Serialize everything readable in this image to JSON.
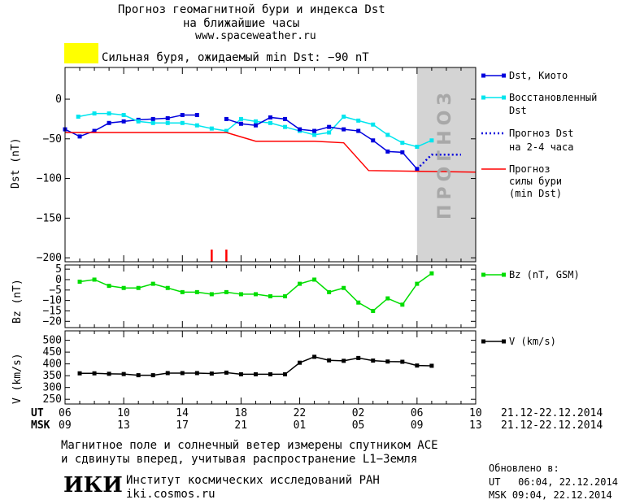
{
  "header": {
    "title_line1": "Прогноз геомагнитной бури и индекса Dst",
    "title_line2": "на ближайшие часы",
    "url": "www.spaceweather.ru",
    "storm_text": "Сильная буря, ожидаемый min Dst: −90 nT",
    "storm_color": "#ffff00"
  },
  "forecast_band_text": "ПРОГНОЗ",
  "colors": {
    "dst_kyoto": "#0000dd",
    "dst_restored": "#00e5ee",
    "dst_forecast": "#0000dd",
    "storm_forecast": "#ff0000",
    "bz": "#00dd00",
    "v": "#000000",
    "forecast_band": "#d4d4d4"
  },
  "legend": {
    "dst_kyoto": "Dst, Киото",
    "restored_1": "Восстановленный",
    "restored_2": "Dst",
    "forecast_1": "Прогноз Dst",
    "forecast_2": "на 2-4 часа",
    "storm_1": "Прогноз",
    "storm_2": "силы бури",
    "storm_3": "(min Dst)",
    "bz": "Bz (nT, GSM)",
    "v": "V (km/s)"
  },
  "time_axis": {
    "ut_label": "UT",
    "msk_label": "MSK",
    "ut_ticks": [
      "06",
      "10",
      "14",
      "18",
      "22",
      "02",
      "06",
      "10"
    ],
    "msk_ticks": [
      "09",
      "13",
      "17",
      "21",
      "01",
      "05",
      "09",
      "13"
    ],
    "date_range_ut": "21.12-22.12.2014",
    "date_range_msk": "21.12-22.12.2014"
  },
  "chart_data": [
    {
      "type": "line",
      "ylabel": "Dst (nT)",
      "ylim": [
        -205,
        40
      ],
      "yticks": [
        0,
        -50,
        -100,
        -150,
        -200
      ],
      "ytick_labels": [
        "0",
        "−50",
        "−100",
        "−150",
        "−200"
      ],
      "xlim": [
        6,
        34
      ],
      "forecast_region_x": [
        30,
        34
      ],
      "series": [
        {
          "name": "Dst, Киото",
          "x": [
            6,
            7,
            8,
            9,
            10,
            11,
            12,
            13,
            14,
            15
          ],
          "y": [
            -38,
            -47,
            -40,
            -30,
            -28,
            -26,
            -25,
            -24,
            -20,
            -20
          ]
        },
        {
          "name": "Восстановленный Dst",
          "x": [
            6.9,
            8,
            9,
            10,
            11,
            12,
            13,
            14,
            15,
            16,
            17,
            18,
            19,
            20,
            21,
            22,
            23,
            24,
            25,
            26,
            27,
            28,
            29,
            30,
            31
          ],
          "y": [
            -22,
            -18,
            -18,
            -20,
            -28,
            -30,
            -30,
            -30,
            -33,
            -37,
            -40,
            -25,
            -28,
            -30,
            -35,
            -40,
            -45,
            -42,
            -22,
            -27,
            -32,
            -45,
            -55,
            -60,
            -52
          ]
        },
        {
          "name": "Dst, Киото (продолжение)",
          "x": [
            17,
            18,
            19,
            20,
            21,
            22,
            23,
            24,
            25,
            26,
            27,
            28,
            29,
            30
          ],
          "y": [
            -25,
            -31,
            -33,
            -23,
            -25,
            -38,
            -40,
            -35,
            -38,
            -40,
            -52,
            -66,
            -67,
            -88
          ]
        },
        {
          "name": "Прогноз Dst на 2-4 часа",
          "x": [
            30,
            31,
            32,
            33
          ],
          "y": [
            -88,
            -70,
            -70,
            -70
          ]
        },
        {
          "name": "Прогноз силы бури (min Dst)",
          "x": [
            6,
            17,
            19,
            23,
            25,
            26.7,
            34
          ],
          "y": [
            -42,
            -42,
            -53,
            -53,
            -55,
            -90,
            -92
          ]
        }
      ],
      "markers_x": [
        16,
        17
      ]
    },
    {
      "type": "line",
      "ylabel": "Bz (nT)",
      "ylim": [
        -23,
        7
      ],
      "yticks": [
        5,
        0,
        -5,
        -10,
        -15,
        -20
      ],
      "ytick_labels": [
        "5",
        "0",
        "−5",
        "−10",
        "−15",
        "−20"
      ],
      "series": [
        {
          "name": "Bz (nT, GSM)",
          "x": [
            7,
            8,
            9,
            10,
            11,
            12,
            13,
            14,
            15,
            16,
            17,
            18,
            19,
            20,
            21,
            22,
            23,
            24,
            25,
            26,
            27,
            28,
            29,
            30,
            31
          ],
          "y": [
            -1,
            0,
            -3,
            -4,
            -4,
            -2,
            -4,
            -6,
            -6,
            -7,
            -6,
            -7,
            -7,
            -8,
            -8,
            -2,
            0,
            -6,
            -4,
            -11,
            -15,
            -9,
            -12,
            -2,
            3
          ]
        }
      ]
    },
    {
      "type": "line",
      "ylabel": "V (km/s)",
      "ylim": [
        230,
        540
      ],
      "yticks": [
        500,
        450,
        400,
        350,
        300,
        250
      ],
      "ytick_labels": [
        "500",
        "450",
        "400",
        "350",
        "300",
        "250"
      ],
      "series": [
        {
          "name": "V (km/s)",
          "x": [
            7,
            8,
            9,
            10,
            11,
            12,
            13,
            14,
            15,
            16,
            17,
            18,
            19,
            20,
            21,
            22,
            23,
            24,
            25,
            26,
            27,
            28,
            29,
            30,
            31
          ],
          "y": [
            360,
            360,
            358,
            357,
            352,
            352,
            361,
            361,
            361,
            359,
            363,
            356,
            356,
            356,
            356,
            405,
            430,
            415,
            413,
            425,
            414,
            410,
            409,
            393,
            392
          ]
        }
      ]
    }
  ],
  "footer": {
    "note_line1": "Магнитное поле и солнечный ветер измерены спутником ACE",
    "note_line2": "и сдвинуты вперед, учитывая распространение L1−Земля",
    "logo": "ИКИ",
    "institute": "Институт космических исследований РАН",
    "institute_url": "iki.cosmos.ru",
    "updated_label": "Обновлено в:",
    "updated_ut": "UT   06:04, 22.12.2014",
    "updated_msk": "MSK 09:04, 22.12.2014"
  }
}
